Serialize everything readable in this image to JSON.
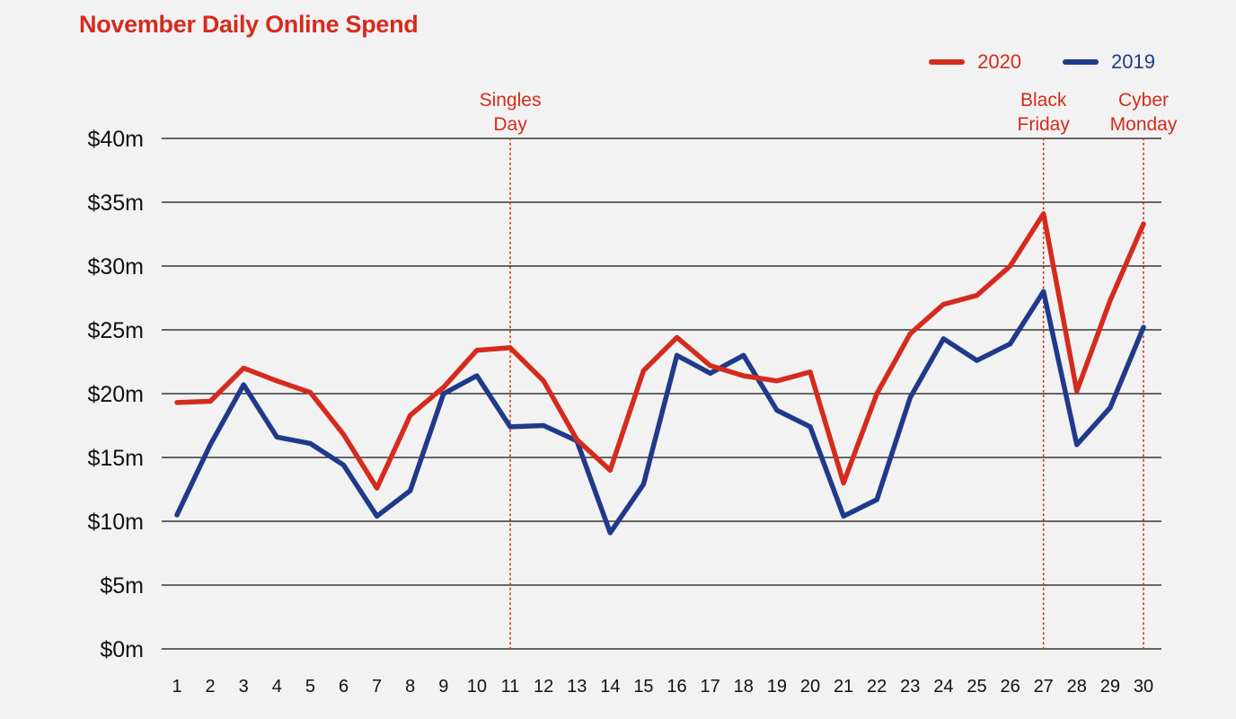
{
  "chart_data": {
    "type": "line",
    "title": "November Daily Online Spend",
    "xlabel": "",
    "ylabel": "",
    "x": [
      1,
      2,
      3,
      4,
      5,
      6,
      7,
      8,
      9,
      10,
      11,
      12,
      13,
      14,
      15,
      16,
      17,
      18,
      19,
      20,
      21,
      22,
      23,
      24,
      25,
      26,
      27,
      28,
      29,
      30
    ],
    "x_tick_labels": [
      "1",
      "2",
      "3",
      "4",
      "5",
      "6",
      "7",
      "8",
      "9",
      "10",
      "11",
      "12",
      "13",
      "14",
      "15",
      "16",
      "17",
      "18",
      "19",
      "20",
      "21",
      "22",
      "23",
      "24",
      "25",
      "26",
      "27",
      "28",
      "29",
      "30"
    ],
    "ylim": [
      0,
      40
    ],
    "y_ticks": [
      0,
      5,
      10,
      15,
      20,
      25,
      30,
      35,
      40
    ],
    "y_tick_labels": [
      "$0m",
      "$5m",
      "$10m",
      "$15m",
      "$20m",
      "$25m",
      "$30m",
      "$35m",
      "$40m"
    ],
    "grid": "horizontal",
    "legend_position": "top-right",
    "series": [
      {
        "name": "2020",
        "color": "#d52b1e",
        "values": [
          19.3,
          19.4,
          22.0,
          21.0,
          20.1,
          16.8,
          12.6,
          18.3,
          20.5,
          23.4,
          23.6,
          21.0,
          16.4,
          14.0,
          21.8,
          24.4,
          22.2,
          21.4,
          21.0,
          21.7,
          13.0,
          20.0,
          24.7,
          27.0,
          27.7,
          30.0,
          34.1,
          20.2,
          27.3,
          33.3
        ]
      },
      {
        "name": "2019",
        "color": "#1f3a8a",
        "values": [
          10.5,
          16.0,
          20.7,
          16.6,
          16.1,
          14.4,
          10.4,
          12.4,
          20.0,
          21.4,
          17.4,
          17.5,
          16.3,
          9.1,
          12.9,
          23.0,
          21.6,
          23.0,
          18.7,
          17.4,
          10.4,
          11.7,
          19.7,
          24.3,
          22.6,
          23.9,
          28.0,
          16.0,
          18.9,
          25.2
        ]
      }
    ],
    "annotations": [
      {
        "x": 11,
        "label": [
          "Singles",
          "Day"
        ]
      },
      {
        "x": 27,
        "label": [
          "Black",
          "Friday"
        ]
      },
      {
        "x": 30,
        "label": [
          "Cyber",
          "Monday"
        ]
      }
    ],
    "annotation_color": "#d52b1e",
    "grid_color": "#111111"
  }
}
